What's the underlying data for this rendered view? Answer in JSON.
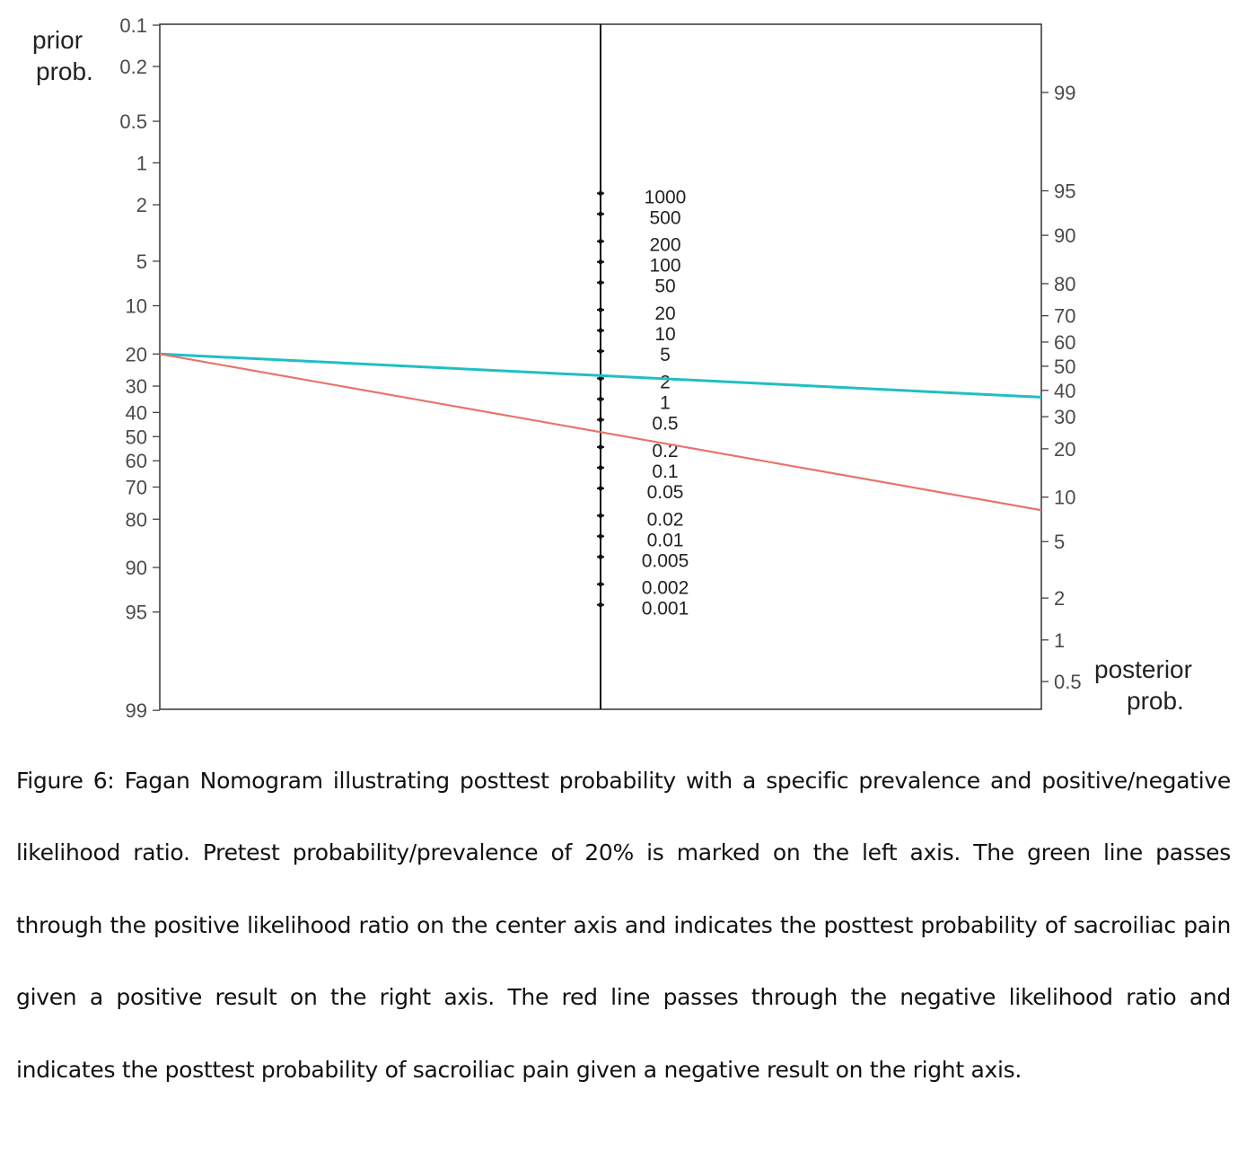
{
  "chart_data": {
    "type": "line",
    "subtype": "fagan-nomogram",
    "left_axis": {
      "title_line1": "prior",
      "title_line2": "prob.",
      "ticks": [
        "0.1",
        "0.2",
        "0.5",
        "1",
        "2",
        "5",
        "10",
        "20",
        "30",
        "40",
        "50",
        "60",
        "70",
        "80",
        "90",
        "95",
        "99"
      ],
      "range_percent": [
        0.1,
        99
      ],
      "scale": "logit, inverted"
    },
    "center_axis": {
      "ticks": [
        "1000",
        "500",
        "200",
        "100",
        "50",
        "20",
        "10",
        "5",
        "2",
        "1",
        "0.5",
        "0.2",
        "0.1",
        "0.05",
        "0.02",
        "0.01",
        "0.005",
        "0.002",
        "0.001"
      ],
      "scale": "log"
    },
    "right_axis": {
      "title_line1": "posterior",
      "title_line2": "prob.",
      "ticks": [
        "99",
        "95",
        "90",
        "80",
        "70",
        "60",
        "50",
        "40",
        "30",
        "20",
        "10",
        "5",
        "2",
        "1",
        "0.5"
      ],
      "scale": "logit"
    },
    "pretest_probability_percent": 20,
    "series": [
      {
        "color": "#1fbfc4",
        "likelihood_ratio": 2.2,
        "posttest_probability_percent": 36
      },
      {
        "color": "#e8736c",
        "likelihood_ratio": 0.33,
        "posttest_probability_percent": 8
      }
    ],
    "grid": false,
    "legend": "none"
  },
  "caption": "Figure 6: Fagan Nomogram illustrating posttest probability with a specific prevalence and positive/negative likelihood ratio. Pretest probability/prevalence of 20% is marked on the left axis. The green line passes through the positive likelihood ratio on the center axis and indicates the posttest probability of sacroiliac pain given a positive result on the right axis. The red line passes through the negative likelihood ratio and indicates the posttest probability of sacroiliac pain given a negative result on the right axis."
}
